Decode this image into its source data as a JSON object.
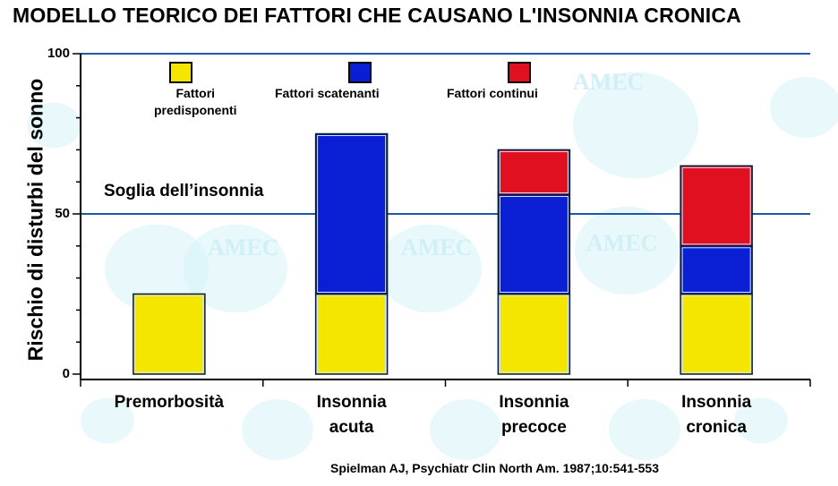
{
  "title": "MODELLO TEORICO DEI FATTORI CHE CAUSANO L'INSONNIA CRONICA",
  "watermark": "AMEC",
  "threshold_label": "Soglia dell’insonnia",
  "source": "Spielman AJ, Psychiatr Clin North Am. 1987;10:541-553",
  "chart_data": {
    "type": "bar",
    "stacked": true,
    "ylabel": "Rischio di disturbi del sonno",
    "ylim": [
      0,
      100
    ],
    "yticks": [
      "0",
      "50",
      "100"
    ],
    "threshold": 50,
    "categories": [
      [
        "Premorbosità"
      ],
      [
        "Insonnia",
        "acuta"
      ],
      [
        "Insonnia",
        "precoce"
      ],
      [
        "Insonnia",
        "cronica"
      ]
    ],
    "series": [
      {
        "name": "Fattori predisponenti",
        "name_lines": [
          "Fattori",
          "predisponenti"
        ],
        "color": "#f5e600",
        "values": [
          25,
          25,
          25,
          25
        ]
      },
      {
        "name": "Fattori scatenanti",
        "name_lines": [
          "Fattori scatenanti"
        ],
        "color": "#0a1fd4",
        "values": [
          0,
          50,
          31,
          15
        ]
      },
      {
        "name": "Fattori continui",
        "name_lines": [
          "Fattori continui"
        ],
        "color": "#e01020",
        "values": [
          0,
          0,
          14,
          25
        ]
      }
    ],
    "legend": "top",
    "grid": false
  }
}
